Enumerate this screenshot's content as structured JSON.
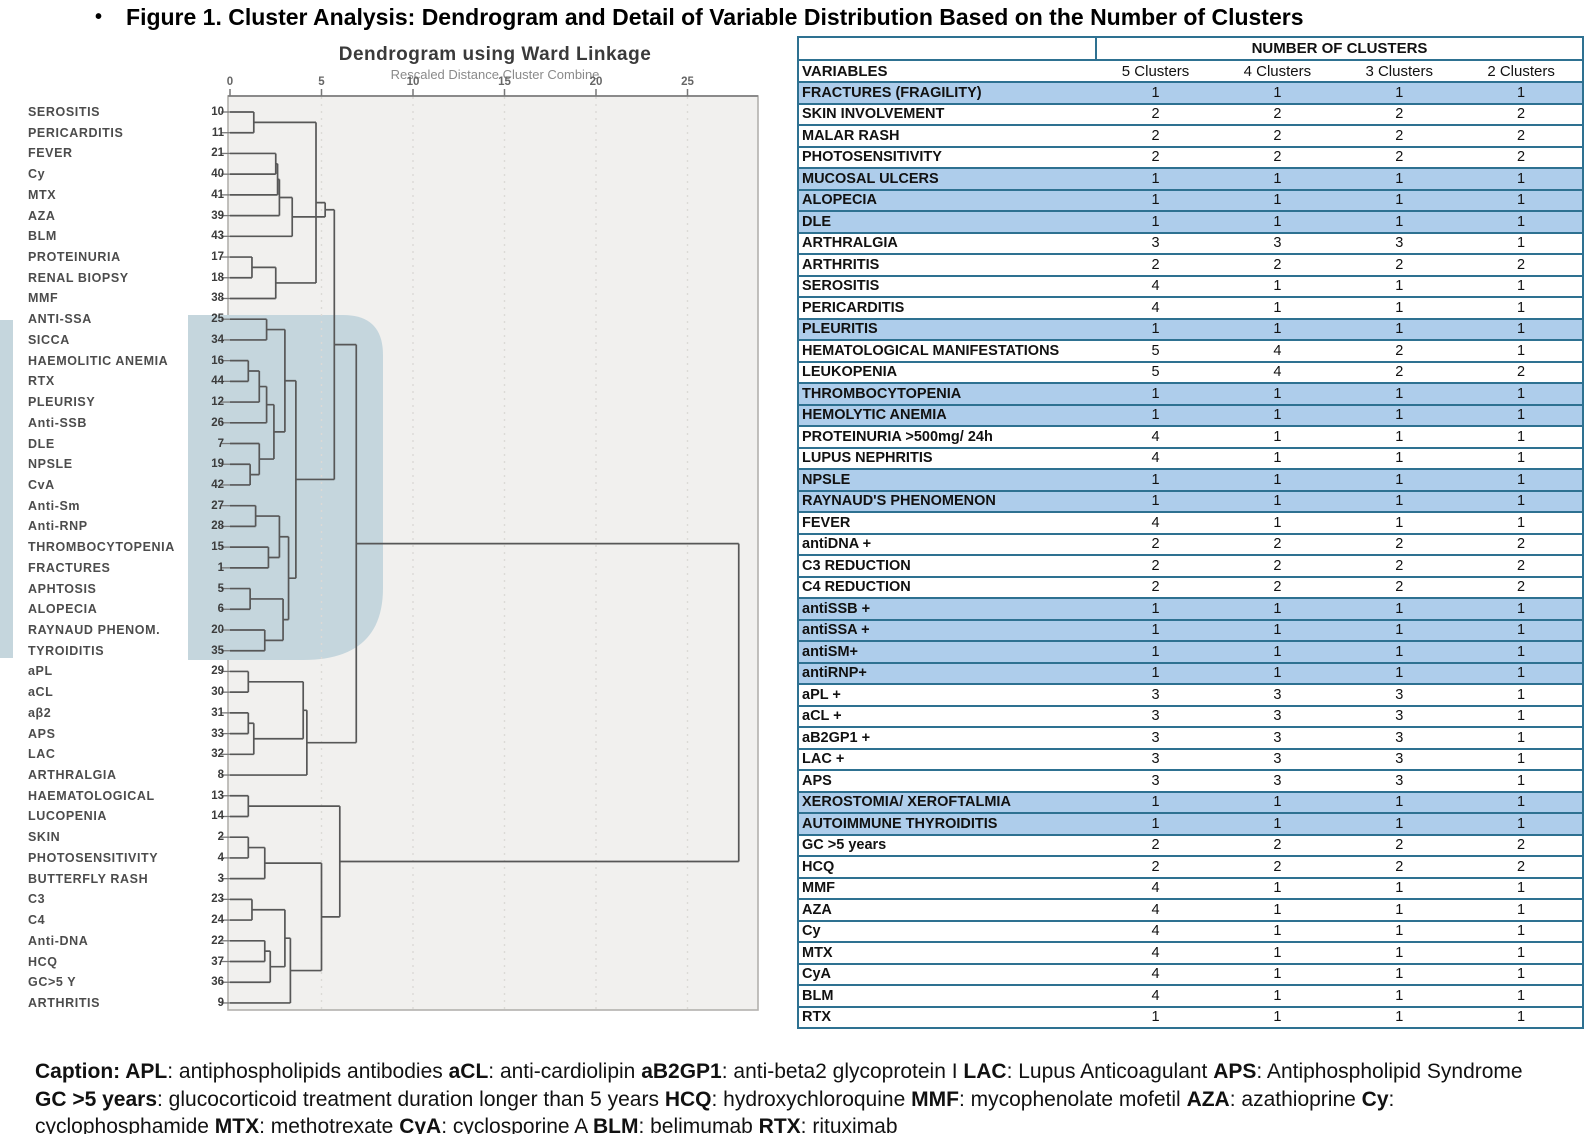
{
  "figure": {
    "bullet": "•",
    "title": "Figure 1. Cluster Analysis: Dendrogram and Detail of Variable Distribution Based on the Number of Clusters"
  },
  "colors": {
    "table_border": "#2e7191",
    "row_highlight": "#aecdeb",
    "dendro_highlight": "#c5d6dd",
    "plot_bg": "#f1f0ee",
    "dendro_line": "#575757"
  },
  "dendrogram": {
    "title": "Dendrogram using Ward Linkage",
    "subtitle": "Rescaled Distance Cluster Combine",
    "axis_ticks": [
      0,
      5,
      10,
      15,
      20,
      25
    ],
    "leaves": [
      {
        "label": "SEROSITIS",
        "num": "10"
      },
      {
        "label": "PERICARDITIS",
        "num": "11"
      },
      {
        "label": "FEVER",
        "num": "21"
      },
      {
        "label": "Cy",
        "num": "40"
      },
      {
        "label": "MTX",
        "num": "41"
      },
      {
        "label": "AZA",
        "num": "39"
      },
      {
        "label": "BLM",
        "num": "43"
      },
      {
        "label": "PROTEINURIA",
        "num": "17"
      },
      {
        "label": "RENAL BIOPSY",
        "num": "18"
      },
      {
        "label": "MMF",
        "num": "38"
      },
      {
        "label": "ANTI-SSA",
        "num": "25"
      },
      {
        "label": "SICCA",
        "num": "34"
      },
      {
        "label": "HAEMOLITIC ANEMIA",
        "num": "16"
      },
      {
        "label": "RTX",
        "num": "44"
      },
      {
        "label": "PLEURISY",
        "num": "12"
      },
      {
        "label": "Anti-SSB",
        "num": "26"
      },
      {
        "label": "DLE",
        "num": "7"
      },
      {
        "label": "NPSLE",
        "num": "19"
      },
      {
        "label": "CvA",
        "num": "42"
      },
      {
        "label": "Anti-Sm",
        "num": "27"
      },
      {
        "label": "Anti-RNP",
        "num": "28"
      },
      {
        "label": "THROMBOCYTOPENIA",
        "num": "15"
      },
      {
        "label": "FRACTURES",
        "num": "1"
      },
      {
        "label": "APHTOSIS",
        "num": "5"
      },
      {
        "label": "ALOPECIA",
        "num": "6"
      },
      {
        "label": "RAYNAUD PHENOM.",
        "num": "20"
      },
      {
        "label": "TYROIDITIS",
        "num": "35"
      },
      {
        "label": "aPL",
        "num": "29"
      },
      {
        "label": "aCL",
        "num": "30"
      },
      {
        "label": "aβ2",
        "num": "31"
      },
      {
        "label": "APS",
        "num": "33"
      },
      {
        "label": "LAC",
        "num": "32"
      },
      {
        "label": "ARTHRALGIA",
        "num": "8"
      },
      {
        "label": "HAEMATOLOGICAL",
        "num": "13"
      },
      {
        "label": "LUCOPENIA",
        "num": "14"
      },
      {
        "label": "SKIN",
        "num": "2"
      },
      {
        "label": "PHOTOSENSITIVITY",
        "num": "4"
      },
      {
        "label": "BUTTERFLY RASH",
        "num": "3"
      },
      {
        "label": "C3",
        "num": "23"
      },
      {
        "label": "C4",
        "num": "24"
      },
      {
        "label": "Anti-DNA",
        "num": "22"
      },
      {
        "label": "HCQ",
        "num": "37"
      },
      {
        "label": "GC>5 Y",
        "num": "36"
      },
      {
        "label": "ARTHRITIS",
        "num": "9"
      }
    ],
    "merges": [
      [
        "L10",
        "L11",
        1.3
      ],
      [
        "L21",
        "L40",
        2.5
      ],
      [
        "M1",
        "L41",
        2.6
      ],
      [
        "M2",
        "L39",
        2.7
      ],
      [
        "M3",
        "L43",
        3.4
      ],
      [
        "L17",
        "L18",
        1.2
      ],
      [
        "M5",
        "L38",
        2.5
      ],
      [
        "M0",
        "M6",
        4.7
      ],
      [
        "M7",
        "M4",
        5.2
      ],
      [
        "L25",
        "L34",
        2.0
      ],
      [
        "L16",
        "L44",
        1.0
      ],
      [
        "M10",
        "L12",
        1.6
      ],
      [
        "M11",
        "L26",
        2.0
      ],
      [
        "L19",
        "L42",
        1.1
      ],
      [
        "L7",
        "M13",
        1.6
      ],
      [
        "M12",
        "M14",
        2.4
      ],
      [
        "M9",
        "M15",
        3.0
      ],
      [
        "L27",
        "L28",
        1.4
      ],
      [
        "L15",
        "L1",
        2.1
      ],
      [
        "M17",
        "M18",
        2.7
      ],
      [
        "L5",
        "L6",
        1.1
      ],
      [
        "L20",
        "L35",
        1.9
      ],
      [
        "M20",
        "M21",
        2.9
      ],
      [
        "M19",
        "M22",
        3.2
      ],
      [
        "M16",
        "M23",
        3.6
      ],
      [
        "M8",
        "M24",
        5.7
      ],
      [
        "L29",
        "L30",
        1.0
      ],
      [
        "L31",
        "L33",
        1.0
      ],
      [
        "M27",
        "L32",
        1.3
      ],
      [
        "M26",
        "M28",
        4.0
      ],
      [
        "M29",
        "L8",
        4.2
      ],
      [
        "M25",
        "M30",
        6.9
      ],
      [
        "L13",
        "L14",
        1.0
      ],
      [
        "L2",
        "L4",
        1.0
      ],
      [
        "M33",
        "L3",
        1.9
      ],
      [
        "L23",
        "L24",
        1.2
      ],
      [
        "L22",
        "L37",
        1.9
      ],
      [
        "M36",
        "L36",
        2.2
      ],
      [
        "M35",
        "M37",
        3.0
      ],
      [
        "M38",
        "L9",
        3.3
      ],
      [
        "M34",
        "M39",
        5.0
      ],
      [
        "M32",
        "M40",
        6.0
      ],
      [
        "M31",
        "M41",
        27.8
      ]
    ]
  },
  "table": {
    "header_group": "NUMBER OF CLUSTERS",
    "columns": [
      "VARIABLES",
      "5 Clusters",
      "4 Clusters",
      "3 Clusters",
      "2 Clusters"
    ],
    "rows": [
      {
        "label": "FRACTURES (FRAGILITY)",
        "values": [
          "1",
          "1",
          "1",
          "1"
        ],
        "highlight": true
      },
      {
        "label": "SKIN INVOLVEMENT",
        "values": [
          "2",
          "2",
          "2",
          "2"
        ],
        "highlight": false
      },
      {
        "label": "MALAR RASH",
        "values": [
          "2",
          "2",
          "2",
          "2"
        ],
        "highlight": false
      },
      {
        "label": "PHOTOSENSITIVITY",
        "values": [
          "2",
          "2",
          "2",
          "2"
        ],
        "highlight": false
      },
      {
        "label": "MUCOSAL ULCERS",
        "values": [
          "1",
          "1",
          "1",
          "1"
        ],
        "highlight": true
      },
      {
        "label": "ALOPECIA",
        "values": [
          "1",
          "1",
          "1",
          "1"
        ],
        "highlight": true
      },
      {
        "label": "DLE",
        "values": [
          "1",
          "1",
          "1",
          "1"
        ],
        "highlight": true
      },
      {
        "label": "ARTHRALGIA",
        "values": [
          "3",
          "3",
          "3",
          "1"
        ],
        "highlight": false
      },
      {
        "label": "ARTHRITIS",
        "values": [
          "2",
          "2",
          "2",
          "2"
        ],
        "highlight": false
      },
      {
        "label": "SEROSITIS",
        "values": [
          "4",
          "1",
          "1",
          "1"
        ],
        "highlight": false
      },
      {
        "label": "PERICARDITIS",
        "values": [
          "4",
          "1",
          "1",
          "1"
        ],
        "highlight": false
      },
      {
        "label": "PLEURITIS",
        "values": [
          "1",
          "1",
          "1",
          "1"
        ],
        "highlight": true
      },
      {
        "label": "HEMATOLOGICAL MANIFESTATIONS",
        "values": [
          "5",
          "4",
          "2",
          "1"
        ],
        "highlight": false
      },
      {
        "label": "LEUKOPENIA",
        "values": [
          "5",
          "4",
          "2",
          "2"
        ],
        "highlight": false
      },
      {
        "label": "THROMBOCYTOPENIA",
        "values": [
          "1",
          "1",
          "1",
          "1"
        ],
        "highlight": true
      },
      {
        "label": "HEMOLYTIC ANEMIA",
        "values": [
          "1",
          "1",
          "1",
          "1"
        ],
        "highlight": true
      },
      {
        "label": "PROTEINURIA >500mg/ 24h",
        "values": [
          "4",
          "1",
          "1",
          "1"
        ],
        "highlight": false
      },
      {
        "label": "LUPUS NEPHRITIS",
        "values": [
          "4",
          "1",
          "1",
          "1"
        ],
        "highlight": false
      },
      {
        "label": "NPSLE",
        "values": [
          "1",
          "1",
          "1",
          "1"
        ],
        "highlight": true
      },
      {
        "label": "RAYNAUD'S PHENOMENON",
        "values": [
          "1",
          "1",
          "1",
          "1"
        ],
        "highlight": true
      },
      {
        "label": "FEVER",
        "values": [
          "4",
          "1",
          "1",
          "1"
        ],
        "highlight": false
      },
      {
        "label": "antiDNA +",
        "values": [
          "2",
          "2",
          "2",
          "2"
        ],
        "highlight": false
      },
      {
        "label": "C3 REDUCTION",
        "values": [
          "2",
          "2",
          "2",
          "2"
        ],
        "highlight": false
      },
      {
        "label": "C4 REDUCTION",
        "values": [
          "2",
          "2",
          "2",
          "2"
        ],
        "highlight": false
      },
      {
        "label": "antiSSB +",
        "values": [
          "1",
          "1",
          "1",
          "1"
        ],
        "highlight": true
      },
      {
        "label": "antiSSA +",
        "values": [
          "1",
          "1",
          "1",
          "1"
        ],
        "highlight": true
      },
      {
        "label": "antiSM+",
        "values": [
          "1",
          "1",
          "1",
          "1"
        ],
        "highlight": true
      },
      {
        "label": "antiRNP+",
        "values": [
          "1",
          "1",
          "1",
          "1"
        ],
        "highlight": true
      },
      {
        "label": "aPL +",
        "values": [
          "3",
          "3",
          "3",
          "1"
        ],
        "highlight": false
      },
      {
        "label": "aCL +",
        "values": [
          "3",
          "3",
          "3",
          "1"
        ],
        "highlight": false
      },
      {
        "label": "aB2GP1 +",
        "values": [
          "3",
          "3",
          "3",
          "1"
        ],
        "highlight": false
      },
      {
        "label": "LAC +",
        "values": [
          "3",
          "3",
          "3",
          "1"
        ],
        "highlight": false
      },
      {
        "label": "APS",
        "values": [
          "3",
          "3",
          "3",
          "1"
        ],
        "highlight": false
      },
      {
        "label": "XEROSTOMIA/ XEROFTALMIA",
        "values": [
          "1",
          "1",
          "1",
          "1"
        ],
        "highlight": true
      },
      {
        "label": "AUTOIMMUNE THYROIDITIS",
        "values": [
          "1",
          "1",
          "1",
          "1"
        ],
        "highlight": true
      },
      {
        "label": "GC >5 years",
        "values": [
          "2",
          "2",
          "2",
          "2"
        ],
        "highlight": false
      },
      {
        "label": "HCQ",
        "values": [
          "2",
          "2",
          "2",
          "2"
        ],
        "highlight": false
      },
      {
        "label": "MMF",
        "values": [
          "4",
          "1",
          "1",
          "1"
        ],
        "highlight": false
      },
      {
        "label": "AZA",
        "values": [
          "4",
          "1",
          "1",
          "1"
        ],
        "highlight": false
      },
      {
        "label": "Cy",
        "values": [
          "4",
          "1",
          "1",
          "1"
        ],
        "highlight": false
      },
      {
        "label": "MTX",
        "values": [
          "4",
          "1",
          "1",
          "1"
        ],
        "highlight": false
      },
      {
        "label": "CyA",
        "values": [
          "4",
          "1",
          "1",
          "1"
        ],
        "highlight": false
      },
      {
        "label": "BLM",
        "values": [
          "4",
          "1",
          "1",
          "1"
        ],
        "highlight": false
      },
      {
        "label": "RTX",
        "values": [
          "1",
          "1",
          "1",
          "1"
        ],
        "highlight": false
      }
    ]
  },
  "caption": {
    "segments": [
      {
        "b": true,
        "t": "Caption: "
      },
      {
        "b": true,
        "t": "APL"
      },
      {
        "b": false,
        "t": ": antiphospholipids antibodies "
      },
      {
        "b": true,
        "t": "aCL"
      },
      {
        "b": false,
        "t": ": anti-cardiolipin "
      },
      {
        "b": true,
        "t": "aB2GP1"
      },
      {
        "b": false,
        "t": ": anti-beta2 glycoprotein I "
      },
      {
        "b": true,
        "t": "LAC"
      },
      {
        "b": false,
        "t": ": Lupus Anticoagulant "
      },
      {
        "b": true,
        "t": "APS"
      },
      {
        "b": false,
        "t": ": Antiphospholipid Syndrome "
      },
      {
        "b": true,
        "t": "GC >5 years"
      },
      {
        "b": false,
        "t": ": glucocorticoid treatment duration longer than 5 years "
      },
      {
        "b": true,
        "t": "HCQ"
      },
      {
        "b": false,
        "t": ": hydroxychloroquine "
      },
      {
        "b": true,
        "t": "MMF"
      },
      {
        "b": false,
        "t": ": mycophenolate mofetil "
      },
      {
        "b": true,
        "t": "AZA"
      },
      {
        "b": false,
        "t": ": azathioprine "
      },
      {
        "b": true,
        "t": "Cy"
      },
      {
        "b": false,
        "t": ": cyclophosphamide "
      },
      {
        "b": true,
        "t": "MTX"
      },
      {
        "b": false,
        "t": ": methotrexate "
      },
      {
        "b": true,
        "t": "CyA"
      },
      {
        "b": false,
        "t": ": cyclosporine A "
      },
      {
        "b": true,
        "t": "BLM"
      },
      {
        "b": false,
        "t": ": belimumab "
      },
      {
        "b": true,
        "t": "RTX"
      },
      {
        "b": false,
        "t": ": rituximab"
      }
    ]
  },
  "chart_data": {
    "type": "dendrogram",
    "title": "Dendrogram using Ward Linkage",
    "subtitle": "Rescaled Distance Cluster Combine",
    "x_axis_label": "Rescaled Distance",
    "x_ticks": [
      0,
      5,
      10,
      15,
      20,
      25
    ],
    "leaf_order": [
      "SEROSITIS 10",
      "PERICARDITIS 11",
      "FEVER 21",
      "Cy 40",
      "MTX 41",
      "AZA 39",
      "BLM 43",
      "PROTEINURIA 17",
      "RENAL BIOPSY 18",
      "MMF 38",
      "ANTI-SSA 25",
      "SICCA 34",
      "HAEMOLITIC ANEMIA 16",
      "RTX 44",
      "PLEURISY 12",
      "Anti-SSB 26",
      "DLE 7",
      "NPSLE 19",
      "CvA 42",
      "Anti-Sm 27",
      "Anti-RNP 28",
      "THROMBOCYTOPENIA 15",
      "FRACTURES 1",
      "APHTOSIS 5",
      "ALOPECIA 6",
      "RAYNAUD PHENOM. 20",
      "TYROIDITIS 35",
      "aPL 29",
      "aCL 30",
      "aβ2 31",
      "APS 33",
      "LAC 32",
      "ARTHRALGIA 8",
      "HAEMATOLOGICAL 13",
      "LUCOPENIA 14",
      "SKIN 2",
      "PHOTOSENSITIVITY 4",
      "BUTTERFLY RASH 3",
      "C3 23",
      "C4 24",
      "Anti-DNA 22",
      "HCQ 37",
      "GC>5 Y 36",
      "ARTHRITIS 9"
    ],
    "highlighted_leaves": [
      "ANTI-SSA 25",
      "SICCA 34",
      "HAEMOLITIC ANEMIA 16",
      "RTX 44",
      "PLEURISY 12",
      "Anti-SSB 26",
      "DLE 7",
      "NPSLE 19",
      "CvA 42",
      "Anti-Sm 27",
      "Anti-RNP 28",
      "THROMBOCYTOPENIA 15",
      "FRACTURES 1",
      "APHTOSIS 5",
      "ALOPECIA 6",
      "RAYNAUD PHENOM. 20",
      "TYROIDITIS 35"
    ]
  }
}
